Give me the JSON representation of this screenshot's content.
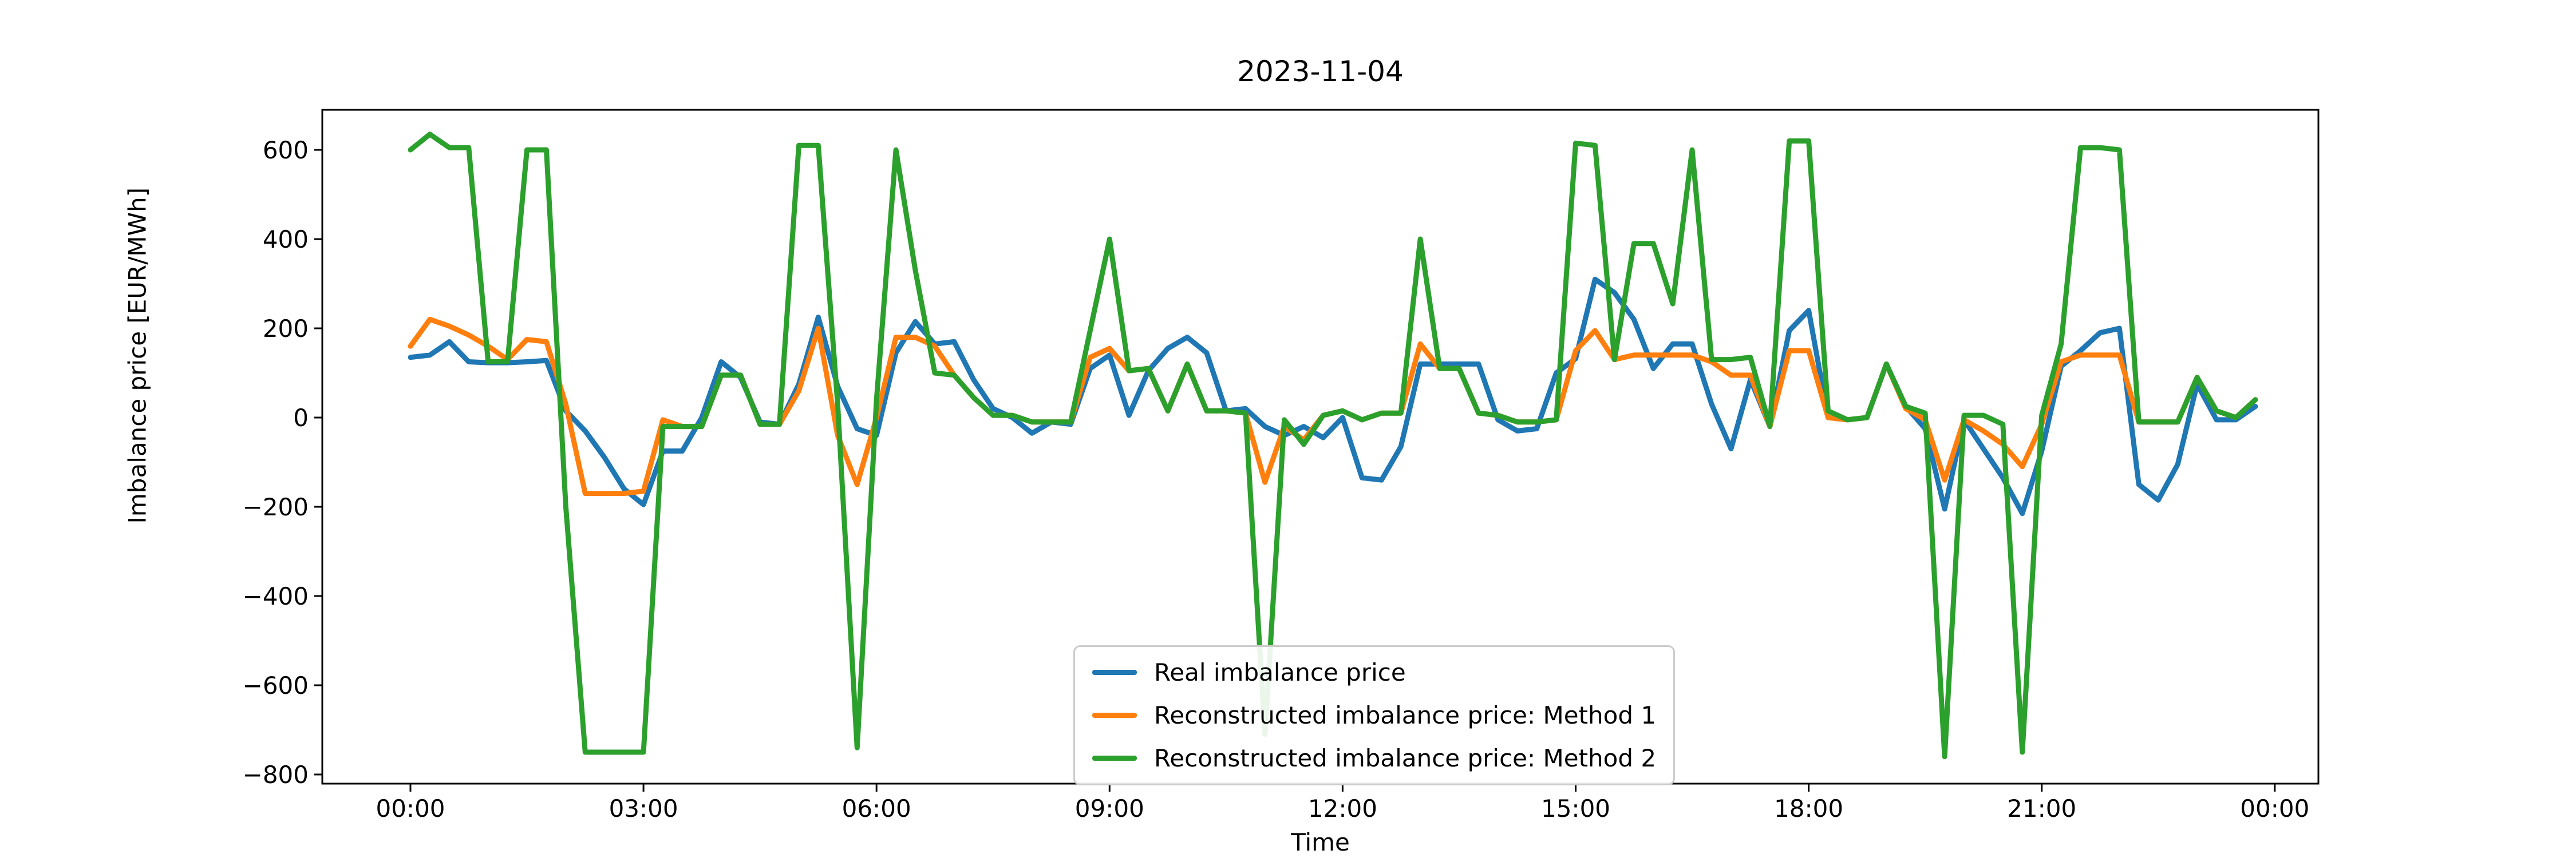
{
  "title": "2023-11-04",
  "axes": {
    "xlabel": "Time",
    "ylabel": "Imbalance price [EUR/MWh]"
  },
  "legend": {
    "entries": [
      {
        "label": "Real imbalance price",
        "color": "#1f77b4"
      },
      {
        "label": "Reconstructed imbalance price: Method 1",
        "color": "#ff7f0e"
      },
      {
        "label": "Reconstructed imbalance price: Method 2",
        "color": "#2ca02c"
      }
    ]
  },
  "chart_data": {
    "type": "line",
    "title": "2023-11-04",
    "xlabel": "Time",
    "ylabel": "Imbalance price [EUR/MWh]",
    "grid": false,
    "legend_position": "inside lower-center",
    "x_start_hour": 0,
    "x_step_minutes": 15,
    "n_points": 96,
    "x_tick_hours": [
      0,
      3,
      6,
      9,
      12,
      15,
      18,
      21,
      24
    ],
    "x_tick_labels": [
      "00:00",
      "03:00",
      "06:00",
      "09:00",
      "12:00",
      "15:00",
      "18:00",
      "21:00",
      "00:00"
    ],
    "y_ticks": [
      600,
      400,
      200,
      0,
      -200,
      -400,
      -600,
      -800
    ],
    "y_tick_labels": [
      "600",
      "400",
      "200",
      "0",
      "−200",
      "−400",
      "−600",
      "−800"
    ],
    "ylim": [
      -820,
      690
    ],
    "xlim_hours": [
      -1.15,
      24.55
    ],
    "series": [
      {
        "name": "Real imbalance price",
        "color": "#1f77b4",
        "values": [
          135,
          140,
          170,
          125,
          123,
          123,
          125,
          128,
          15,
          -30,
          -90,
          -160,
          -195,
          -75,
          -75,
          0,
          125,
          90,
          -10,
          -15,
          75,
          225,
          70,
          -25,
          -40,
          145,
          215,
          165,
          170,
          85,
          20,
          0,
          -35,
          -10,
          -15,
          110,
          140,
          5,
          105,
          155,
          180,
          145,
          15,
          20,
          -20,
          -40,
          -20,
          -45,
          0,
          -135,
          -140,
          -65,
          120,
          120,
          120,
          120,
          -5,
          -30,
          -25,
          100,
          132,
          310,
          280,
          220,
          110,
          165,
          165,
          30,
          -70,
          85,
          -20,
          195,
          240,
          0,
          -5,
          0,
          120,
          25,
          -25,
          -205,
          -5,
          -70,
          -135,
          -215,
          -75,
          115,
          150,
          190,
          200,
          -150,
          -185,
          -105,
          75,
          -5,
          -5,
          25
        ]
      },
      {
        "name": "Reconstructed imbalance price: Method 1",
        "color": "#ff7f0e",
        "values": [
          160,
          220,
          205,
          185,
          160,
          130,
          175,
          170,
          30,
          -170,
          -170,
          -170,
          -165,
          -5,
          -20,
          -20,
          95,
          95,
          -15,
          -15,
          60,
          200,
          -40,
          -150,
          0,
          180,
          180,
          160,
          95,
          45,
          5,
          5,
          -10,
          -10,
          -10,
          135,
          155,
          105,
          110,
          15,
          120,
          15,
          15,
          10,
          -145,
          -20,
          -50,
          5,
          15,
          -5,
          10,
          10,
          165,
          110,
          110,
          10,
          5,
          -10,
          -10,
          -5,
          150,
          195,
          130,
          140,
          140,
          140,
          140,
          125,
          95,
          95,
          -20,
          150,
          150,
          0,
          -5,
          0,
          120,
          20,
          -5,
          -140,
          -5,
          -30,
          -60,
          -110,
          -15,
          125,
          140,
          140,
          140,
          -10,
          -10,
          -10,
          90,
          15,
          0,
          40
        ]
      },
      {
        "name": "Reconstructed imbalance price: Method 2",
        "color": "#2ca02c",
        "values": [
          600,
          635,
          605,
          605,
          125,
          125,
          600,
          600,
          -200,
          -750,
          -750,
          -750,
          -750,
          -20,
          -20,
          -20,
          95,
          95,
          -15,
          -15,
          610,
          610,
          30,
          -740,
          40,
          600,
          330,
          100,
          95,
          45,
          5,
          5,
          -10,
          -10,
          -10,
          195,
          400,
          105,
          110,
          15,
          120,
          15,
          15,
          10,
          -710,
          -5,
          -60,
          5,
          15,
          -5,
          10,
          10,
          400,
          110,
          110,
          10,
          5,
          -10,
          -10,
          -5,
          615,
          610,
          130,
          390,
          390,
          255,
          600,
          130,
          130,
          135,
          -20,
          620,
          620,
          15,
          -5,
          0,
          120,
          25,
          10,
          -760,
          5,
          5,
          -15,
          -750,
          5,
          165,
          605,
          605,
          600,
          -10,
          -10,
          -10,
          90,
          15,
          0,
          40
        ]
      }
    ]
  }
}
